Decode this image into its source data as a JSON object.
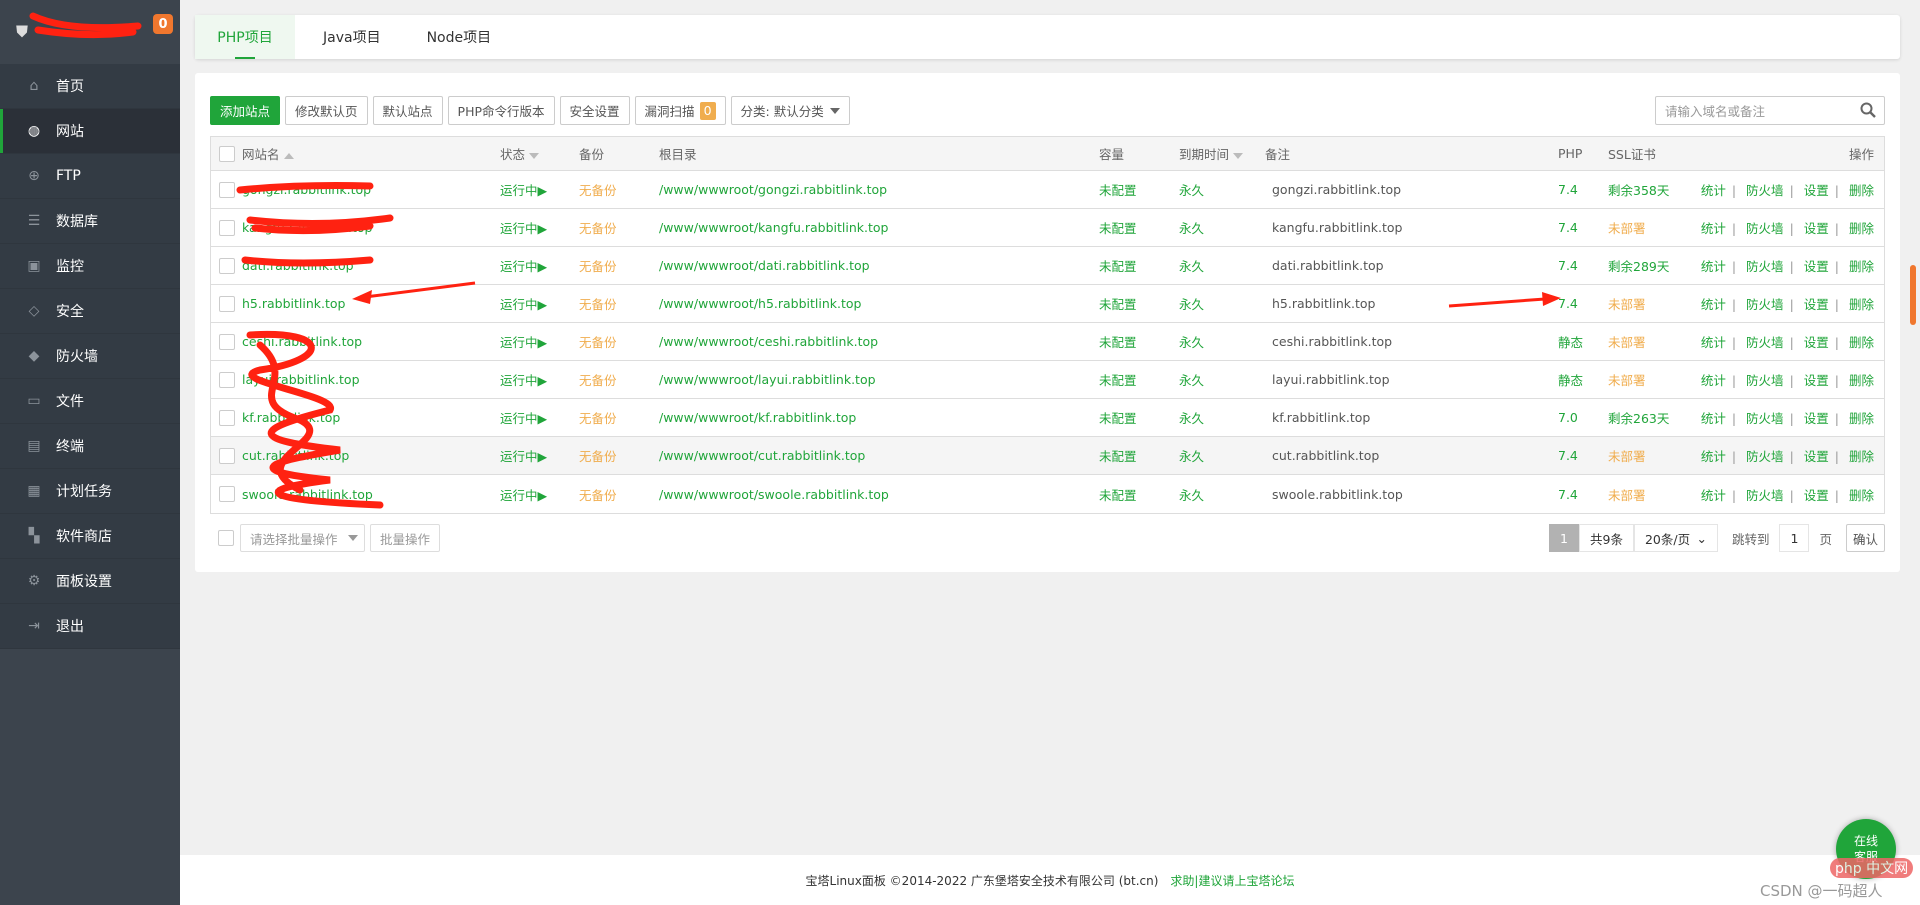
{
  "sidebar": {
    "badge": "0",
    "items": [
      {
        "label": "首页",
        "icon": "home-icon",
        "glyph": "⌂"
      },
      {
        "label": "网站",
        "icon": "globe-icon",
        "glyph": "◍",
        "active": true
      },
      {
        "label": "FTP",
        "icon": "ftp-icon",
        "glyph": "⊕"
      },
      {
        "label": "数据库",
        "icon": "database-icon",
        "glyph": "☰"
      },
      {
        "label": "监控",
        "icon": "monitor-icon",
        "glyph": "▣"
      },
      {
        "label": "安全",
        "icon": "shield-check-icon",
        "glyph": "◇"
      },
      {
        "label": "防火墙",
        "icon": "firewall-icon",
        "glyph": "◆"
      },
      {
        "label": "文件",
        "icon": "folder-icon",
        "glyph": "▭"
      },
      {
        "label": "终端",
        "icon": "terminal-icon",
        "glyph": "▤"
      },
      {
        "label": "计划任务",
        "icon": "calendar-icon",
        "glyph": "▦"
      },
      {
        "label": "软件商店",
        "icon": "apps-icon",
        "glyph": "▚"
      },
      {
        "label": "面板设置",
        "icon": "gear-icon",
        "glyph": "⚙"
      },
      {
        "label": "退出",
        "icon": "logout-icon",
        "glyph": "⇥"
      }
    ]
  },
  "tabs": [
    "PHP项目",
    "Java项目",
    "Node项目"
  ],
  "toolbar": {
    "add": "添加站点",
    "default_page": "修改默认页",
    "default_site": "默认站点",
    "php_cli": "PHP命令行版本",
    "security": "安全设置",
    "vuln_scan": "漏洞扫描",
    "vuln_count": "0",
    "category": "分类: 默认分类"
  },
  "search": {
    "placeholder": "请输入域名或备注"
  },
  "table": {
    "headers": {
      "name": "网站名",
      "status": "状态",
      "backup": "备份",
      "root": "根目录",
      "quota": "容量",
      "expire": "到期时间",
      "remark": "备注",
      "php": "PHP",
      "ssl": "SSL证书",
      "ops": "操作"
    },
    "ops": [
      "统计",
      "防火墙",
      "设置",
      "删除"
    ],
    "rows": [
      {
        "name": "gongzi.rabbitlink.top",
        "status": "运行中▶",
        "backup": "无备份",
        "root": "/www/wwwroot/gongzi.rabbitlink.top",
        "quota": "未配置",
        "expire": "永久",
        "remark": "gongzi.rabbitlink.top",
        "php": "7.4",
        "ssl": "剩余358天",
        "ssl_ok": true
      },
      {
        "name": "kangfu.rabbitlink.top",
        "status": "运行中▶",
        "backup": "无备份",
        "root": "/www/wwwroot/kangfu.rabbitlink.top",
        "quota": "未配置",
        "expire": "永久",
        "remark": "kangfu.rabbitlink.top",
        "php": "7.4",
        "ssl": "未部署",
        "ssl_ok": false
      },
      {
        "name": "dati.rabbitlink.top",
        "status": "运行中▶",
        "backup": "无备份",
        "root": "/www/wwwroot/dati.rabbitlink.top",
        "quota": "未配置",
        "expire": "永久",
        "remark": "dati.rabbitlink.top",
        "php": "7.4",
        "ssl": "剩余289天",
        "ssl_ok": true
      },
      {
        "name": "h5.rabbitlink.top",
        "status": "运行中▶",
        "backup": "无备份",
        "root": "/www/wwwroot/h5.rabbitlink.top",
        "quota": "未配置",
        "expire": "永久",
        "remark": "h5.rabbitlink.top",
        "php": "7.4",
        "ssl": "未部署",
        "ssl_ok": false
      },
      {
        "name": "ceshi.rabbitlink.top",
        "status": "运行中▶",
        "backup": "无备份",
        "root": "/www/wwwroot/ceshi.rabbitlink.top",
        "quota": "未配置",
        "expire": "永久",
        "remark": "ceshi.rabbitlink.top",
        "php": "静态",
        "ssl": "未部署",
        "ssl_ok": false
      },
      {
        "name": "layui.rabbitlink.top",
        "status": "运行中▶",
        "backup": "无备份",
        "root": "/www/wwwroot/layui.rabbitlink.top",
        "quota": "未配置",
        "expire": "永久",
        "remark": "layui.rabbitlink.top",
        "php": "静态",
        "ssl": "未部署",
        "ssl_ok": false
      },
      {
        "name": "kf.rabbitlink.top",
        "status": "运行中▶",
        "backup": "无备份",
        "root": "/www/wwwroot/kf.rabbitlink.top",
        "quota": "未配置",
        "expire": "永久",
        "remark": "kf.rabbitlink.top",
        "php": "7.0",
        "ssl": "剩余263天",
        "ssl_ok": true
      },
      {
        "name": "cut.rabbitlink.top",
        "status": "运行中▶",
        "backup": "无备份",
        "root": "/www/wwwroot/cut.rabbitlink.top",
        "quota": "未配置",
        "expire": "永久",
        "remark": "cut.rabbitlink.top",
        "php": "7.4",
        "ssl": "未部署",
        "ssl_ok": false
      },
      {
        "name": "swoole.rabbitlink.top",
        "status": "运行中▶",
        "backup": "无备份",
        "root": "/www/wwwroot/swoole.rabbitlink.top",
        "quota": "未配置",
        "expire": "永久",
        "remark": "swoole.rabbitlink.top",
        "php": "7.4",
        "ssl": "未部署",
        "ssl_ok": false
      }
    ]
  },
  "batch": {
    "placeholder": "请选择批量操作",
    "button": "批量操作"
  },
  "pager": {
    "current": "1",
    "total": "共9条",
    "per_page": "20条/页",
    "jump_label": "跳转到",
    "jump_value": "1",
    "page_unit": "页",
    "confirm": "确认"
  },
  "footer": {
    "copyright": "宝塔Linux面板 ©2014-2022 广东堡塔安全技术有限公司 (bt.cn)",
    "help_link": "求助|建议请上宝塔论坛"
  },
  "chat": {
    "line1": "在线",
    "line2": "客服"
  },
  "watermark": {
    "php": "php 中文网",
    "csdn": "CSDN @一码超人"
  },
  "colors": {
    "accent": "#20a53a",
    "warning": "#f0ad4e",
    "sidebar": "#333b44",
    "badge": "#f0772e"
  }
}
